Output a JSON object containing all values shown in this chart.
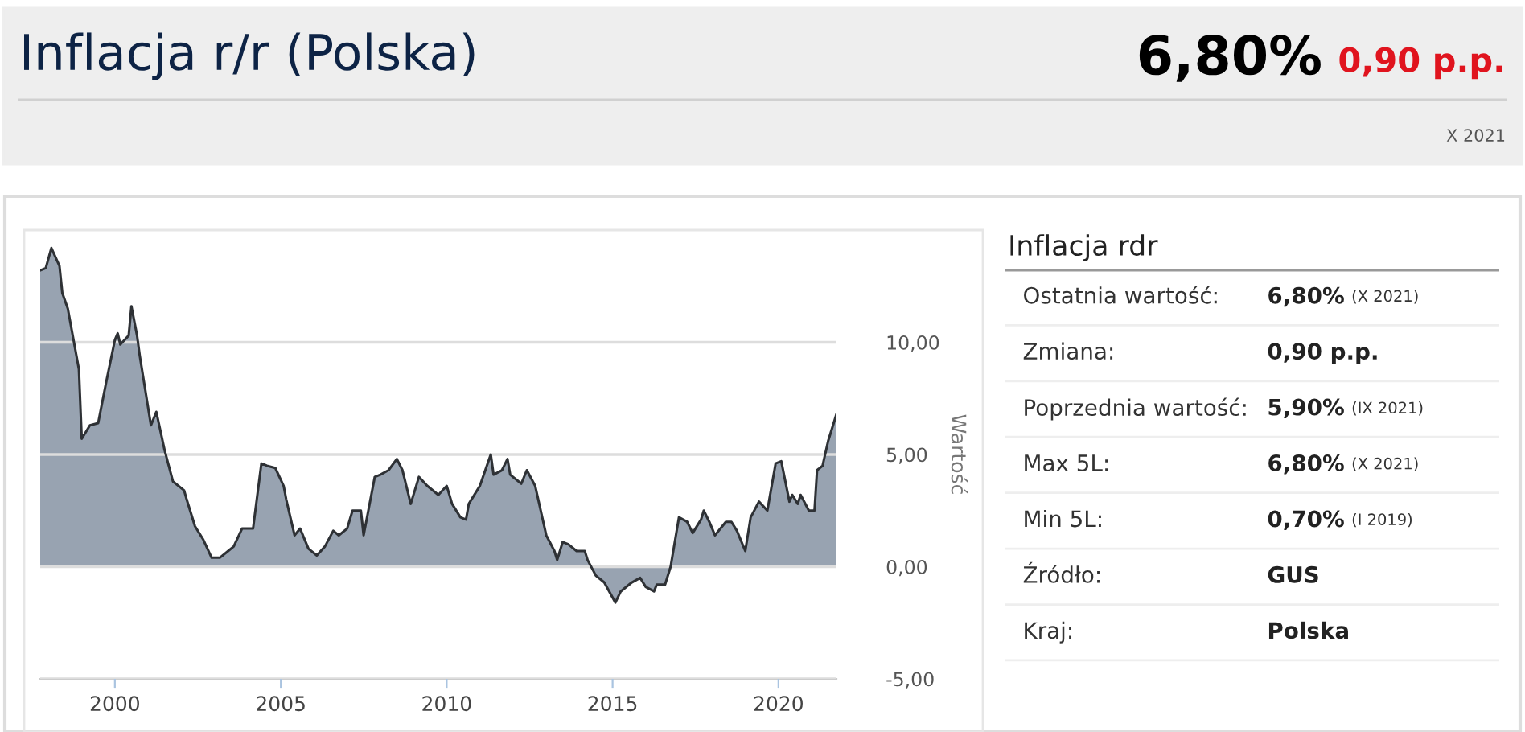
{
  "chart_data": [
    {
      "type": "area",
      "title": "Inflacja r/r (Polska)",
      "ylabel": "Wartość",
      "annotations": [
        "6,80%",
        "0,90 p.p.",
        "X 2021"
      ],
      "x": [
        "1997-10",
        "1997-12",
        "1998-02",
        "1998-05",
        "1998-06",
        "1998-08",
        "1998-12",
        "1999-01",
        "1999-04",
        "1999-07",
        "1999-10",
        "2000-01",
        "2000-02",
        "2000-03",
        "2000-06",
        "2000-07",
        "2000-09",
        "2000-10",
        "2001-02",
        "2001-04",
        "2001-07",
        "2001-10",
        "2002-02",
        "2002-03",
        "2002-06",
        "2002-09",
        "2002-12",
        "2003-03",
        "2003-06",
        "2003-08",
        "2003-11",
        "2004-03",
        "2004-06",
        "2004-08",
        "2004-11",
        "2005-02",
        "2005-03",
        "2005-06",
        "2005-08",
        "2005-11",
        "2006-02",
        "2006-05",
        "2006-08",
        "2006-10",
        "2007-01",
        "2007-03",
        "2007-06",
        "2007-07",
        "2007-11",
        "2008-01",
        "2008-04",
        "2008-07",
        "2008-09",
        "2008-12",
        "2009-03",
        "2009-06",
        "2009-10",
        "2010-01",
        "2010-03",
        "2010-06",
        "2010-08",
        "2010-09",
        "2011-01",
        "2011-05",
        "2011-06",
        "2011-09",
        "2011-11",
        "2011-12",
        "2012-04",
        "2012-06",
        "2012-09",
        "2012-11",
        "2013-01",
        "2013-04",
        "2013-05",
        "2013-07",
        "2013-09",
        "2013-12",
        "2014-03",
        "2014-04",
        "2014-07",
        "2014-10",
        "2015-02",
        "2015-04",
        "2015-08",
        "2015-11",
        "2016-01",
        "2016-04",
        "2016-05",
        "2016-08",
        "2016-10",
        "2017-01",
        "2017-04",
        "2017-06",
        "2017-09",
        "2017-10",
        "2017-12",
        "2018-02",
        "2018-06",
        "2018-08",
        "2018-10",
        "2019-01",
        "2019-03",
        "2019-06",
        "2019-09",
        "2019-12",
        "2020-02",
        "2020-05",
        "2020-06",
        "2020-08",
        "2020-09",
        "2020-12",
        "2021-02",
        "2021-03",
        "2021-05",
        "2021-07",
        "2021-10"
      ],
      "series": [
        {
          "color": "#98a3b1",
          "values": [
            13.2,
            13.3,
            14.2,
            13.4,
            12.2,
            11.5,
            8.8,
            5.7,
            6.3,
            6.4,
            8.3,
            10.1,
            10.4,
            9.9,
            10.3,
            11.6,
            10.3,
            9.4,
            6.3,
            6.9,
            5.2,
            3.8,
            3.4,
            3.0,
            1.8,
            1.2,
            0.4,
            0.4,
            0.7,
            0.9,
            1.7,
            1.7,
            4.6,
            4.5,
            4.4,
            3.6,
            3.0,
            1.4,
            1.7,
            0.8,
            0.5,
            0.9,
            1.6,
            1.4,
            1.7,
            2.5,
            2.5,
            1.4,
            4.0,
            4.1,
            4.3,
            4.8,
            4.3,
            2.8,
            4.0,
            3.6,
            3.2,
            3.6,
            2.8,
            2.2,
            2.1,
            2.8,
            3.6,
            5.0,
            4.1,
            4.3,
            4.8,
            4.1,
            3.7,
            4.3,
            3.6,
            2.5,
            1.4,
            0.7,
            0.3,
            1.1,
            1.0,
            0.7,
            0.7,
            0.3,
            -0.4,
            -0.7,
            -1.6,
            -1.1,
            -0.7,
            -0.5,
            -0.9,
            -1.1,
            -0.8,
            -0.8,
            0.0,
            2.2,
            2.0,
            1.5,
            2.1,
            2.5,
            2.0,
            1.4,
            2.0,
            2.0,
            1.6,
            0.7,
            2.2,
            2.9,
            2.5,
            4.6,
            4.7,
            2.9,
            3.2,
            2.8,
            3.2,
            2.5,
            2.5,
            4.3,
            4.5,
            5.6,
            6.8
          ]
        }
      ],
      "xlim": [
        "1997-10",
        "2021-10"
      ],
      "xticks": [
        "2000",
        "2005",
        "2010",
        "2015",
        "2020"
      ],
      "ylim": [
        -5,
        15
      ],
      "yticks": [
        {
          "value": -5,
          "label": "-5,00"
        },
        {
          "value": 0,
          "label": "0,00"
        },
        {
          "value": 5,
          "label": "5,00"
        },
        {
          "value": 10,
          "label": "10,00"
        }
      ],
      "grid": "y"
    },
    {
      "type": "other",
      "title": "Inflacja rdr",
      "annotations": [
        "Ostatnia wartość:",
        "6,80% (X 2021)",
        "Zmiana:",
        "0,90 p.p.",
        "Poprzednia wartość:",
        "5,90% (IX 2021)",
        "Max 5L:",
        "6,80% (X 2021)",
        "Min 5L:",
        "0,70% (I 2019)",
        "Źródło:",
        "GUS",
        "Kraj:",
        "Polska"
      ]
    }
  ]
}
